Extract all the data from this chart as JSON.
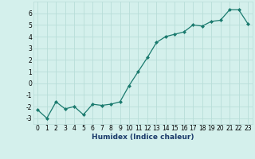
{
  "x": [
    0,
    1,
    2,
    3,
    4,
    5,
    6,
    7,
    8,
    9,
    10,
    11,
    12,
    13,
    14,
    15,
    16,
    17,
    18,
    19,
    20,
    21,
    22,
    23
  ],
  "y": [
    -2.3,
    -3.0,
    -1.6,
    -2.2,
    -2.0,
    -2.7,
    -1.8,
    -1.9,
    -1.8,
    -1.6,
    -0.2,
    1.0,
    2.2,
    3.5,
    4.0,
    4.2,
    4.4,
    5.0,
    4.9,
    5.3,
    5.4,
    6.3,
    6.3,
    5.1
  ],
  "xlabel": "Humidex (Indice chaleur)",
  "ylim": [
    -3.5,
    7.0
  ],
  "xlim": [
    -0.5,
    23.5
  ],
  "yticks": [
    -3,
    -2,
    -1,
    0,
    1,
    2,
    3,
    4,
    5,
    6
  ],
  "xticks": [
    0,
    1,
    2,
    3,
    4,
    5,
    6,
    7,
    8,
    9,
    10,
    11,
    12,
    13,
    14,
    15,
    16,
    17,
    18,
    19,
    20,
    21,
    22,
    23
  ],
  "line_color": "#1a7a6e",
  "marker": "D",
  "marker_size": 2.0,
  "bg_color": "#d4f0ec",
  "grid_color": "#b8ddd8",
  "xlabel_color": "#1a3a6a",
  "xlabel_fontsize": 6.5,
  "tick_fontsize": 5.5
}
